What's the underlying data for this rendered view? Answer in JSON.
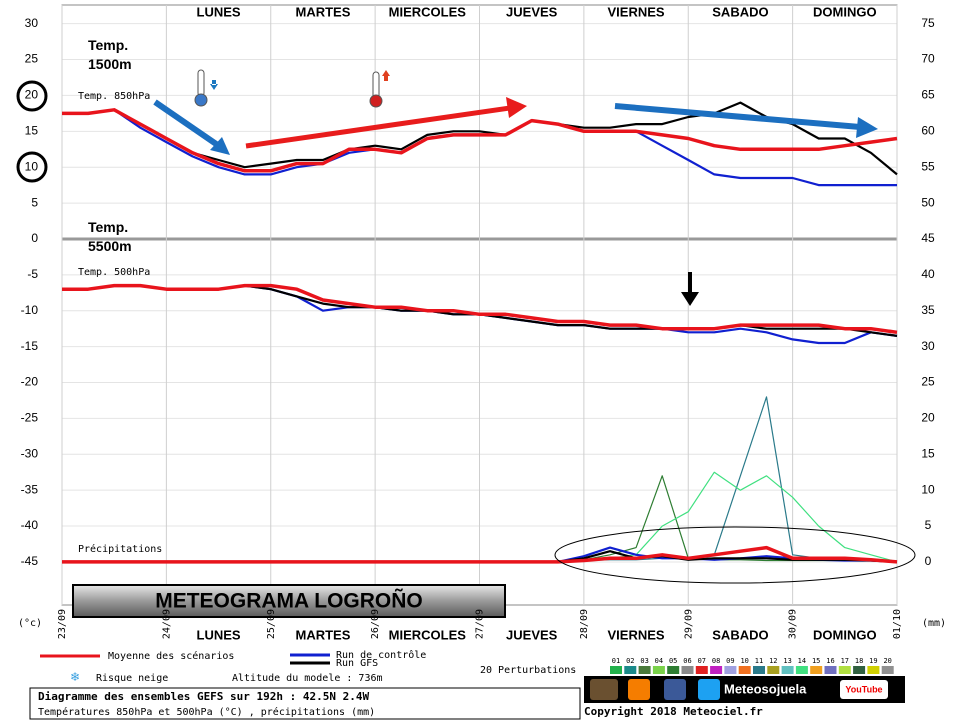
{
  "chart_data": {
    "type": "line",
    "title": "METEOGRAMA LOGROÑO",
    "days": [
      "LUNES",
      "MARTES",
      "MIERCOLES",
      "JUEVES",
      "VIERNES",
      "SABADO",
      "DOMINGO"
    ],
    "annotations": {
      "t850_big": "Temp.\n1500m",
      "t500_big": "Temp.\n5500m",
      "t850_small": "Temp. 850hPa",
      "t500_small": "Temp. 500hPa",
      "precip_small": "Précipitations"
    },
    "y_unit": "(°c)",
    "y2_unit": "(mm)",
    "x": [
      0,
      6,
      12,
      18,
      24,
      30,
      36,
      42,
      48,
      54,
      60,
      66,
      72,
      78,
      84,
      90,
      96,
      102,
      108,
      114,
      120,
      126,
      132,
      138,
      144,
      150,
      156,
      162,
      168,
      174,
      180,
      186,
      192
    ],
    "xlim": [
      0,
      192
    ],
    "xticks": [
      {
        "value": 0,
        "label": "23/09"
      },
      {
        "value": 24,
        "label": "24/09"
      },
      {
        "value": 48,
        "label": "25/09"
      },
      {
        "value": 72,
        "label": "26/09"
      },
      {
        "value": 96,
        "label": "27/09"
      },
      {
        "value": 120,
        "label": "28/09"
      },
      {
        "value": 144,
        "label": "29/09"
      },
      {
        "value": 168,
        "label": "30/09"
      },
      {
        "value": 192,
        "label": "01/10"
      }
    ],
    "ylim": [
      -51,
      32.6
    ],
    "yticks": [
      30,
      25,
      20,
      15,
      10,
      5,
      0,
      -5,
      -10,
      -15,
      -20,
      -25,
      -30,
      -35,
      -40,
      -45
    ],
    "y2lim": [
      -6,
      77.6
    ],
    "y2ticks": [
      75,
      70,
      65,
      60,
      55,
      50,
      45,
      40,
      35,
      30,
      25,
      20,
      15,
      10,
      5,
      0
    ],
    "grid": true,
    "series": [
      {
        "name": "Moyenne des scénarios",
        "color": "#e8141c",
        "t850": [
          17.5,
          17.5,
          18,
          16,
          14,
          12,
          10.5,
          9.5,
          9.5,
          10.5,
          10.5,
          12.5,
          12.5,
          12,
          14,
          14.5,
          14.5,
          14.5,
          16.5,
          16,
          15,
          15,
          15,
          14.5,
          14,
          13,
          12.5,
          12.5,
          12.5,
          12.5,
          13,
          13.5,
          14
        ],
        "t500": [
          -7,
          -7,
          -6.5,
          -6.5,
          -7,
          -7,
          -7,
          -6.5,
          -6.5,
          -7,
          -8.5,
          -9,
          -9.5,
          -9.5,
          -10,
          -10,
          -10.5,
          -10.5,
          -11,
          -11.5,
          -11.5,
          -12,
          -12,
          -12.5,
          -12.5,
          -12.5,
          -12,
          -12,
          -12,
          -12,
          -12.5,
          -12.5,
          -13
        ],
        "precip": [
          0,
          0,
          0,
          0,
          0,
          0,
          0,
          0,
          0,
          0,
          0,
          0,
          0,
          0,
          0,
          0,
          0,
          0,
          0,
          0,
          0.2,
          0.5,
          0.5,
          1,
          0.5,
          1,
          1.5,
          2,
          0.5,
          0.5,
          0.5,
          0.3,
          0
        ]
      },
      {
        "name": "Run de contrôle",
        "color": "#1020d0",
        "t850": [
          17.5,
          17.5,
          18,
          15.5,
          13.5,
          11.5,
          10,
          9,
          9,
          10,
          10.5,
          12,
          12.5,
          12,
          14,
          14.5,
          14.5,
          14.5,
          16.5,
          16,
          15,
          15,
          15,
          13,
          11,
          9,
          8.5,
          8.5,
          8.5,
          7.5,
          7.5,
          7.5,
          7.5
        ],
        "t500": [
          -7,
          -7,
          -6.5,
          -6.5,
          -7,
          -7,
          -7,
          -6.5,
          -7,
          -8,
          -10,
          -9.5,
          -9.5,
          -10,
          -10,
          -10.5,
          -10.5,
          -11,
          -11.5,
          -12,
          -12,
          -12.5,
          -12.5,
          -12.5,
          -13,
          -13,
          -12.5,
          -13,
          -14,
          -14.5,
          -14.5,
          -13,
          -13.5
        ],
        "precip": [
          0,
          0,
          0,
          0,
          0,
          0,
          0,
          0,
          0,
          0,
          0,
          0,
          0,
          0,
          0,
          0,
          0,
          0,
          0,
          0,
          0.8,
          2,
          1,
          0.5,
          0.5,
          0.3,
          0.5,
          0.8,
          0.5,
          0.3,
          0.2,
          0.2,
          0
        ]
      },
      {
        "name": "Run GFS",
        "color": "#000000",
        "t850": [
          17.5,
          17.5,
          18,
          16,
          14,
          12,
          11,
          10,
          10.5,
          11,
          11,
          12.5,
          13,
          12.5,
          14.5,
          15,
          15,
          14.5,
          16.5,
          16,
          15.5,
          15.5,
          16,
          16,
          17,
          17.5,
          19,
          17,
          16,
          14,
          14,
          12,
          9
        ],
        "t500": [
          -7,
          -7,
          -6.5,
          -6.5,
          -7,
          -7,
          -7,
          -6.5,
          -7,
          -8,
          -9,
          -9.5,
          -9.5,
          -10,
          -10,
          -10.5,
          -10.5,
          -11,
          -11.5,
          -12,
          -12,
          -12.5,
          -12.5,
          -12.5,
          -12.5,
          -12.5,
          -12,
          -12.5,
          -12.5,
          -12.5,
          -12.5,
          -13,
          -13.5
        ],
        "precip": [
          0,
          0,
          0,
          0,
          0,
          0,
          0,
          0,
          0,
          0,
          0,
          0,
          0,
          0,
          0,
          0,
          0,
          0,
          0,
          0,
          0.5,
          1.5,
          0.5,
          0.8,
          0.3,
          0.5,
          0.5,
          0.5,
          0.3,
          0.3,
          0.3,
          0.2,
          0
        ]
      }
    ],
    "perturbations_title": "20 Perturbations",
    "perturbations": [
      {
        "label": "01",
        "color": "#22b14c"
      },
      {
        "label": "02",
        "color": "#1a8a8a"
      },
      {
        "label": "03",
        "color": "#4a7a3a"
      },
      {
        "label": "04",
        "color": "#7ad24a"
      },
      {
        "label": "05",
        "color": "#2e7d32",
        "precip": [
          0,
          0,
          0,
          0,
          0,
          0,
          0,
          0,
          0,
          0,
          0,
          0,
          0,
          0,
          0,
          0,
          0,
          0,
          0,
          0,
          0.3,
          1,
          2,
          12,
          0.5,
          0.3,
          0.3,
          0.2,
          0.2,
          0.2,
          0.2,
          0.2,
          0
        ]
      },
      {
        "label": "06",
        "color": "#8a8a8a"
      },
      {
        "label": "07",
        "color": "#e02020"
      },
      {
        "label": "08",
        "color": "#c020c0"
      },
      {
        "label": "09",
        "color": "#a0a0e0"
      },
      {
        "label": "10",
        "color": "#f07020"
      },
      {
        "label": "11",
        "color": "#2a7a8a",
        "precip": [
          0,
          0,
          0,
          0,
          0,
          0,
          0,
          0,
          0,
          0,
          0,
          0,
          0,
          0,
          0,
          0,
          0,
          0,
          0,
          0,
          0.2,
          0.3,
          0.3,
          0.5,
          0.5,
          1,
          12,
          23,
          1,
          0.5,
          0.3,
          0.2,
          0
        ]
      },
      {
        "label": "12",
        "color": "#a8a020"
      },
      {
        "label": "13",
        "color": "#60c0c0"
      },
      {
        "label": "14",
        "color": "#40e080",
        "precip": [
          0,
          0,
          0,
          0,
          0,
          0,
          0,
          0,
          0,
          0,
          0,
          0,
          0,
          0,
          0,
          0,
          0,
          0,
          0,
          0,
          0.2,
          0.5,
          1,
          5,
          7,
          12.5,
          10,
          12,
          9,
          5,
          2,
          1,
          0
        ]
      },
      {
        "label": "15",
        "color": "#f0a020"
      },
      {
        "label": "16",
        "color": "#7070c0"
      },
      {
        "label": "17",
        "color": "#b0e040"
      },
      {
        "label": "18",
        "color": "#306040"
      },
      {
        "label": "19",
        "color": "#d0d000"
      },
      {
        "label": "20",
        "color": "#909090"
      }
    ],
    "snow_risk": "Risque neige",
    "altitude": "Altitude du modele : 736m",
    "info_line1": "Diagramme des ensembles GEFS sur 192h : 42.5N 2.4W",
    "info_line2": "Températures 850hPa et 500hPa (°C) , précipitations (mm)",
    "copyright": "Copyright 2018 Meteociel.fr",
    "social_name": "Meteosojuela",
    "youtube": "YouTube"
  }
}
